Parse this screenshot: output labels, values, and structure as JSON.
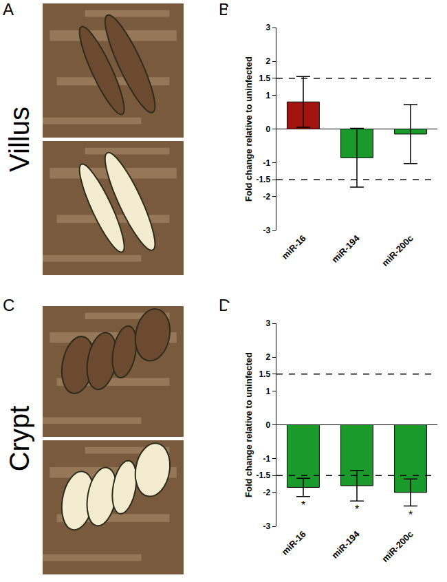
{
  "panel_labels": [
    "A",
    "B",
    "C",
    "D"
  ],
  "row_labels": [
    "Villus",
    "Crypt"
  ],
  "chart_data": [
    {
      "type": "bar",
      "y_label": "Fold change relative to uninfected",
      "categories": [
        "miR-16",
        "miR-194",
        "miR-200c"
      ],
      "values": [
        0.8,
        -0.85,
        -0.15
      ],
      "errors": [
        0.75,
        0.87,
        0.87
      ],
      "colors": [
        "#a1140f",
        "#1a9a2a",
        "#1a9a2a"
      ],
      "ylim": [
        -3,
        3
      ],
      "yticks": [
        -3,
        -2,
        -1.5,
        -1,
        0,
        1,
        1.5,
        2,
        3
      ],
      "threshold_lines": [
        -1.5,
        1.5
      ],
      "grid": false
    },
    {
      "type": "bar",
      "y_label": "Fold change relative to uninfected",
      "categories": [
        "miR-16",
        "miR-194",
        "miR-200c"
      ],
      "values": [
        -1.85,
        -1.8,
        -2.0
      ],
      "errors": [
        0.27,
        0.45,
        0.4
      ],
      "colors": [
        "#1a9a2a",
        "#1a9a2a",
        "#1a9a2a"
      ],
      "ylim": [
        -3,
        3
      ],
      "yticks": [
        -3,
        -2,
        -1.5,
        -1,
        0,
        1,
        1.5,
        2,
        3
      ],
      "threshold_lines": [
        -1.5,
        1.5
      ],
      "annotations": [
        {
          "category": "miR-16",
          "text": "*"
        },
        {
          "category": "miR-194",
          "text": "*"
        },
        {
          "category": "miR-200c",
          "text": "*"
        }
      ],
      "grid": false
    }
  ]
}
